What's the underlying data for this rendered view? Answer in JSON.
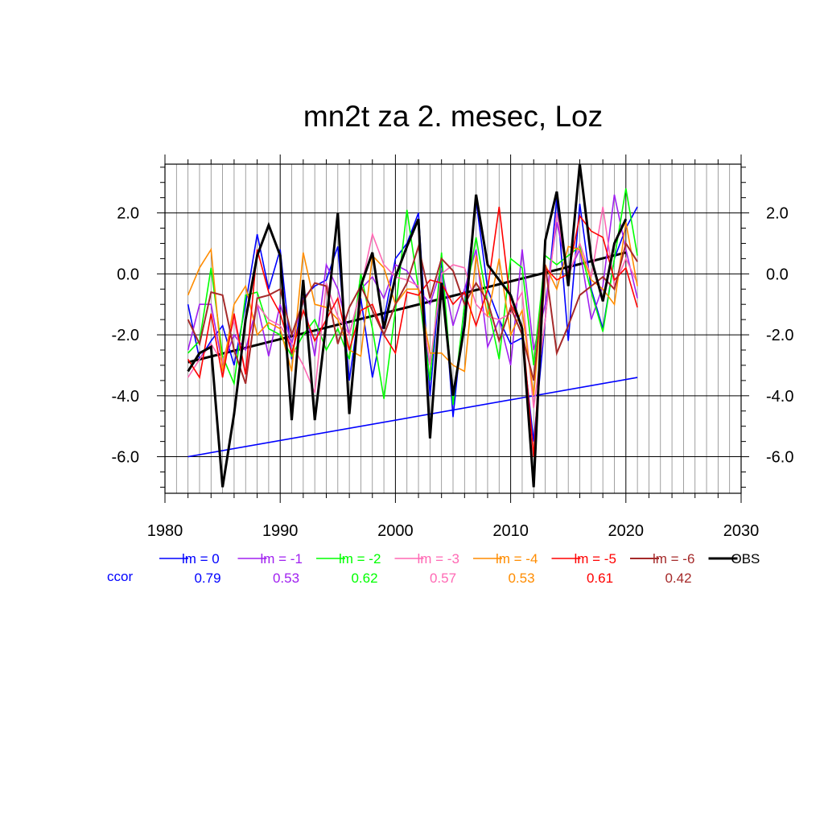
{
  "chart_data": {
    "type": "line",
    "title": "mn2t za 2. mesec, Loz",
    "xlabel": "",
    "ylabel": "",
    "xlim": [
      1980,
      2030
    ],
    "ylim": [
      -7.2,
      3.6
    ],
    "x_ticks": [
      1980,
      1990,
      2000,
      2010,
      2020,
      2030
    ],
    "x_tick_labels": [
      "1980",
      "1990",
      "2000",
      "2010",
      "2020",
      "2030"
    ],
    "y_ticks": [
      2,
      0,
      -2,
      -4,
      -6
    ],
    "y_tick_labels": [
      "2.0",
      "0.0",
      "-2.0",
      "-4.0",
      "-6.0"
    ],
    "grid": true,
    "legend_position": "bottom",
    "ccor_label": "ccor",
    "ccor_color": "#0000ff",
    "x": [
      1982,
      1983,
      1984,
      1985,
      1986,
      1987,
      1988,
      1989,
      1990,
      1991,
      1992,
      1993,
      1994,
      1995,
      1996,
      1997,
      1998,
      1999,
      2000,
      2001,
      2002,
      2003,
      2004,
      2005,
      2006,
      2007,
      2008,
      2009,
      2010,
      2011,
      2012,
      2013,
      2014,
      2015,
      2016,
      2017,
      2018,
      2019,
      2020,
      2021
    ],
    "series": [
      {
        "name": "lm = 0",
        "color": "#0000ff",
        "width": 1.6,
        "ccor": "0.79",
        "values": [
          -1.0,
          -2.8,
          -2.2,
          -1.7,
          -3.0,
          -1.0,
          1.3,
          -0.5,
          0.8,
          -2.8,
          -0.8,
          -0.4,
          -0.2,
          0.9,
          -3.5,
          -0.8,
          -3.4,
          -1.5,
          0.5,
          1.0,
          2.0,
          -4.0,
          0.4,
          -4.7,
          -1.0,
          2.4,
          -0.5,
          -1.5,
          -2.3,
          -2.1,
          -5.5,
          -1.5,
          2.5,
          -2.2,
          2.3,
          -0.5,
          -1.8,
          0.5,
          1.5,
          2.2
        ]
      },
      {
        "name": "lm = -1",
        "color": "#a020f0",
        "width": 1.6,
        "ccor": "0.53",
        "values": [
          -2.5,
          -1.0,
          -1.0,
          -3.0,
          -2.0,
          -2.5,
          -1.0,
          -2.7,
          -1.0,
          -2.3,
          -0.8,
          -2.7,
          0.3,
          -0.5,
          -2.0,
          -0.5,
          -0.1,
          -0.8,
          0.3,
          0.1,
          -0.5,
          -1.0,
          0.2,
          -1.7,
          -0.5,
          0.8,
          -2.4,
          -1.5,
          -3.0,
          0.8,
          -2.5,
          -1.0,
          1.7,
          0.0,
          0.8,
          -1.5,
          -0.4,
          2.6,
          0.8,
          -0.8
        ]
      },
      {
        "name": "lm = -2",
        "color": "#00ff00",
        "width": 1.6,
        "ccor": "0.62",
        "values": [
          -2.6,
          -2.2,
          0.2,
          -2.7,
          -3.6,
          -0.7,
          -0.6,
          -1.8,
          -2.0,
          -2.7,
          -2.0,
          -1.5,
          -2.5,
          -1.8,
          -2.8,
          0.0,
          -1.8,
          -4.1,
          -1.2,
          2.1,
          -0.5,
          -3.5,
          0.7,
          -4.3,
          -1.0,
          1.2,
          -1.0,
          -2.8,
          0.5,
          0.2,
          -3.0,
          0.6,
          0.3,
          0.6,
          0.9,
          -0.6,
          -1.9,
          0.5,
          2.8,
          0.6
        ]
      },
      {
        "name": "lm = -3",
        "color": "#ff69b4",
        "width": 1.6,
        "ccor": "0.57",
        "values": [
          -3.4,
          -2.8,
          -2.3,
          -2.9,
          -1.5,
          -3.3,
          -1.0,
          -1.5,
          -1.7,
          -2.3,
          -3.0,
          -3.9,
          -0.3,
          -1.4,
          -2.0,
          -0.5,
          1.3,
          0.3,
          -0.1,
          -0.2,
          -0.4,
          -3.0,
          0.0,
          0.3,
          0.2,
          -1.0,
          -1.4,
          -1.5,
          -1.3,
          -0.6,
          -4.4,
          -1.5,
          2.0,
          -0.1,
          1.0,
          -0.1,
          2.2,
          -0.4,
          0.5,
          -0.3
        ]
      },
      {
        "name": "lm = -4",
        "color": "#ff8c00",
        "width": 1.6,
        "ccor": "0.53",
        "values": [
          -0.7,
          0.2,
          0.8,
          -3.2,
          -1.0,
          -0.4,
          -2.0,
          -1.6,
          -1.8,
          -3.2,
          0.7,
          -1.0,
          -1.1,
          -1.5,
          -2.5,
          -2.7,
          0.6,
          0.2,
          -1.0,
          -0.5,
          -0.5,
          -2.6,
          -2.6,
          -3.0,
          -3.2,
          0.6,
          -1.4,
          0.5,
          -2.0,
          -1.2,
          -4.0,
          0.3,
          -0.5,
          0.9,
          0.8,
          -0.2,
          -0.5,
          -1.0,
          1.7,
          -0.4
        ]
      },
      {
        "name": "lm = -5",
        "color": "#ff0000",
        "width": 1.6,
        "ccor": "0.61",
        "values": [
          -2.8,
          -3.4,
          -1.3,
          -3.4,
          -1.3,
          -3.3,
          0.8,
          -0.6,
          -1.3,
          -2.6,
          -1.2,
          -2.2,
          -1.5,
          -0.8,
          -2.5,
          -1.2,
          -1.0,
          -2.0,
          -2.6,
          -0.6,
          -0.7,
          -0.2,
          -0.3,
          -1.0,
          -0.6,
          -1.7,
          -0.5,
          2.2,
          -1.0,
          -1.7,
          -6.0,
          0.2,
          -0.2,
          0.0,
          1.9,
          1.4,
          1.2,
          -0.2,
          0.2,
          -1.1
        ]
      },
      {
        "name": "lm = -6",
        "color": "#a52a2a",
        "width": 2.0,
        "ccor": "0.42",
        "values": [
          -1.5,
          -2.3,
          -0.6,
          -0.7,
          -2.5,
          -3.6,
          -0.8,
          -0.7,
          -0.5,
          -2.0,
          -0.9,
          -0.3,
          -0.4,
          -2.3,
          -1.1,
          -0.4,
          -1.2,
          -2.0,
          -1.0,
          -0.3,
          0.9,
          -0.8,
          0.5,
          0.1,
          -1.0,
          -0.3,
          -0.9,
          -2.2,
          -1.1,
          -2.0,
          -3.5,
          0.3,
          -2.6,
          -1.7,
          -0.7,
          -0.4,
          -0.1,
          -0.5,
          1.0,
          0.4
        ]
      },
      {
        "name": "OBS",
        "color": "#000000",
        "width": 3.0,
        "ccor": "",
        "values": [
          -3.2,
          -2.6,
          -2.4,
          -7.0,
          -4.6,
          -1.5,
          0.6,
          1.6,
          0.6,
          -4.8,
          -0.2,
          -4.8,
          -1.6,
          2.0,
          -4.6,
          -0.4,
          0.7,
          -1.8,
          -0.1,
          0.9,
          1.8,
          -5.4,
          -0.3,
          -4.0,
          -1.7,
          2.6,
          0.3,
          -0.2,
          -0.7,
          -1.8,
          -7.0,
          1.1,
          2.7,
          -0.4,
          3.6,
          0.5,
          -0.9,
          1.0,
          1.8,
          null
        ]
      }
    ],
    "trend_lines": [
      {
        "name": "trend-lm0",
        "color": "#0000ff",
        "width": 1.6,
        "x": [
          1982,
          2021
        ],
        "y": [
          -6.0,
          -3.4
        ]
      },
      {
        "name": "trend-obs",
        "color": "#000000",
        "width": 3.0,
        "x": [
          1982,
          2020
        ],
        "y": [
          -2.9,
          0.7
        ]
      }
    ]
  }
}
